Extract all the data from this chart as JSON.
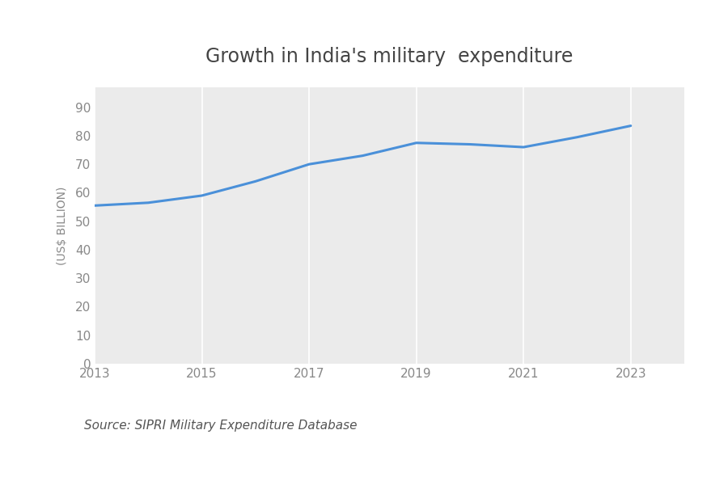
{
  "title": "Growth in India's military  expenditure",
  "ylabel": "(US$ BILLION)",
  "source_text": "Source: SIPRI Military Expenditure Database",
  "years": [
    2013,
    2014,
    2015,
    2016,
    2017,
    2018,
    2019,
    2020,
    2021,
    2022,
    2023
  ],
  "values": [
    55.5,
    56.5,
    59.0,
    64.0,
    70.0,
    73.0,
    77.5,
    77.0,
    76.0,
    79.5,
    83.5
  ],
  "line_color": "#4a90d9",
  "line_width": 2.2,
  "plot_bg_color": "#ebebeb",
  "outer_background": "#ffffff",
  "yticks": [
    0,
    10,
    20,
    30,
    40,
    50,
    60,
    70,
    80,
    90
  ],
  "xticks": [
    2013,
    2015,
    2017,
    2019,
    2021,
    2023
  ],
  "ylim": [
    0,
    97
  ],
  "xlim": [
    2013,
    2024
  ],
  "title_fontsize": 17,
  "ylabel_fontsize": 10,
  "tick_fontsize": 11,
  "source_fontsize": 11,
  "grid_color": "#ffffff",
  "grid_linewidth": 1.2,
  "tick_color": "#888888",
  "title_color": "#444444"
}
